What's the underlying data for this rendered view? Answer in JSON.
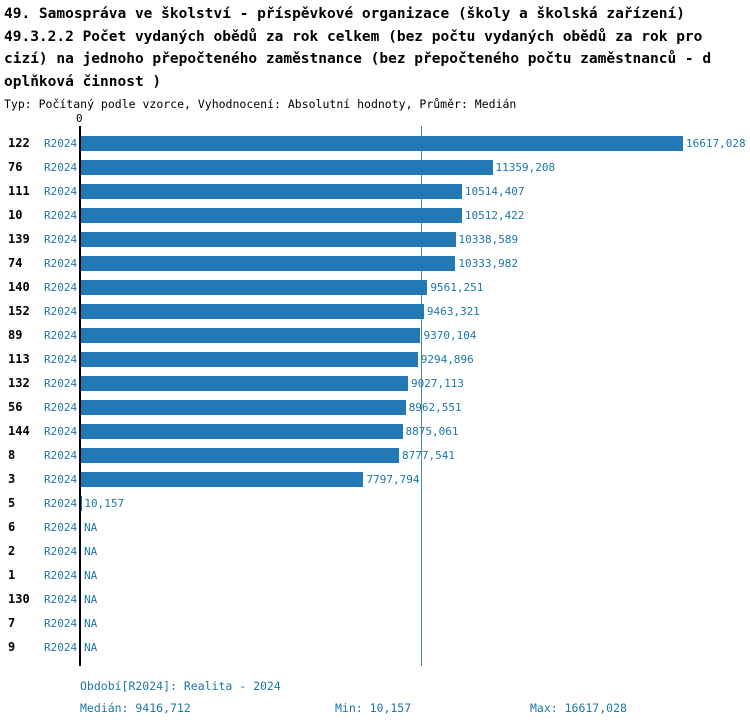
{
  "title": {
    "line1": "49. Samospráva ve školství - příspěvkové organizace (školy a školská zařízení)",
    "line2": "49.3.2.2 Počet vydaných obědů za rok celkem (bez počtu vydaných obědů za rok pro",
    "line3": "cizí) na jednoho přepočteného zaměstnance (bez přepočteného počtu zaměstnanců - d",
    "line4": "oplňková činnost )",
    "meta": "Typ: Počítaný podle vzorce, Vyhodnocení: Absolutní hodnoty, Průměr: Medián"
  },
  "chart_data": {
    "type": "bar",
    "orientation": "horizontal",
    "zero_label": "0",
    "period_label": "R2024",
    "xlabel": "",
    "ylabel": "",
    "xlim": [
      0,
      16617.028
    ],
    "median": 9416.712,
    "min": 10.157,
    "max": 16617.028,
    "grid": false,
    "legend_position": "none",
    "rows": [
      {
        "id": "122",
        "value": 16617.028,
        "label": "16617,028"
      },
      {
        "id": "76",
        "value": 11359.208,
        "label": "11359,208"
      },
      {
        "id": "111",
        "value": 10514.407,
        "label": "10514,407"
      },
      {
        "id": "10",
        "value": 10512.422,
        "label": "10512,422"
      },
      {
        "id": "139",
        "value": 10338.589,
        "label": "10338,589"
      },
      {
        "id": "74",
        "value": 10333.982,
        "label": "10333,982"
      },
      {
        "id": "140",
        "value": 9561.251,
        "label": "9561,251"
      },
      {
        "id": "152",
        "value": 9463.321,
        "label": "9463,321"
      },
      {
        "id": "89",
        "value": 9370.104,
        "label": "9370,104"
      },
      {
        "id": "113",
        "value": 9294.896,
        "label": "9294,896"
      },
      {
        "id": "132",
        "value": 9027.113,
        "label": "9027,113"
      },
      {
        "id": "56",
        "value": 8962.551,
        "label": "8962,551"
      },
      {
        "id": "144",
        "value": 8875.061,
        "label": "8875,061"
      },
      {
        "id": "8",
        "value": 8777.541,
        "label": "8777,541"
      },
      {
        "id": "3",
        "value": 7797.794,
        "label": "7797,794"
      },
      {
        "id": "5",
        "value": 10.157,
        "label": "10,157"
      },
      {
        "id": "6",
        "value": null,
        "label": "NA"
      },
      {
        "id": "2",
        "value": null,
        "label": "NA"
      },
      {
        "id": "1",
        "value": null,
        "label": "NA"
      },
      {
        "id": "130",
        "value": null,
        "label": "NA"
      },
      {
        "id": "7",
        "value": null,
        "label": "NA"
      },
      {
        "id": "9",
        "value": null,
        "label": "NA"
      }
    ]
  },
  "footer": {
    "period": "Období[R2024]: Realita - 2024",
    "median": "Medián: 9416,712",
    "min": "Min: 10,157",
    "max": "Max: 16617,028"
  },
  "colors": {
    "bar": "#2478b4",
    "label": "#1d76a8",
    "median_line": "#3d8f99",
    "axis": "#000000"
  }
}
